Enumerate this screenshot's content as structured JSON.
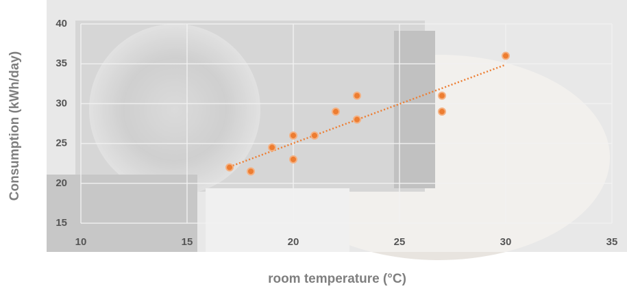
{
  "chart_data": {
    "type": "scatter",
    "x_label": "room temperature (°C)",
    "y_label": "Consumption (kWh/day)",
    "x": [
      17,
      18,
      19,
      20,
      20,
      21,
      22,
      23,
      23,
      27,
      27,
      30
    ],
    "series": [
      {
        "color": "#ed7d31",
        "values": [
          22,
          21.5,
          24.5,
          26,
          23,
          26,
          29,
          31,
          28,
          31,
          29,
          36
        ]
      }
    ],
    "xlim": [
      10,
      35
    ],
    "xticks": [
      10,
      15,
      20,
      25,
      30,
      35
    ],
    "ylim": [
      15,
      40
    ],
    "yticks": [
      15,
      20,
      25,
      30,
      35,
      40
    ],
    "grid": true,
    "trendline": true
  }
}
